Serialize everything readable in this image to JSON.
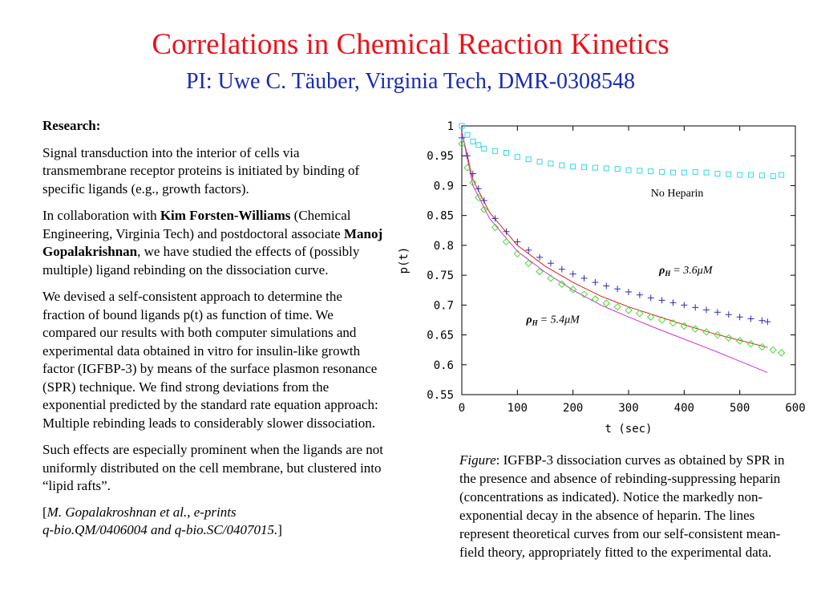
{
  "header": {
    "title": "Correlations in Chemical Reaction Kinetics",
    "subtitle": "PI: Uwe C. Täuber, Virginia Tech, DMR-0308548"
  },
  "left": {
    "heading": "Research:",
    "p1": "Signal transduction into the interior of cells via transmembrane receptor proteins is initiated by binding of specific ligands (e.g., growth factors).",
    "p2a": "In collaboration with ",
    "p2b": "Kim Forsten-Williams",
    "p2c": " (Chemical Engineering, Virginia Tech) and postdoctoral associate ",
    "p2d": "Manoj Gopalakrishnan",
    "p2e": ", we have studied the effects of (possibly multiple) ligand rebinding on the dissociation curve.",
    "p3": "We devised a self-consistent approach to determine the fraction of bound ligands p(t) as function of time. We compared our results with both computer simulations and experimental data obtained in vitro for insulin-like growth factor (IGFBP-3) by means of the surface plasmon resonance (SPR) technique. We find strong deviations from the exponential predicted by the standard rate equation approach: Multiple rebinding leads to considerably slower dissociation.",
    "p4": "Such effects are especially prominent when the ligands are not uniformly distributed on the cell membrane, but clustered into “lipid rafts”.",
    "ref_open": "[",
    "ref_line1": "M. Gopalakroshnan et al., e-prints",
    "ref_line2": "q-bio.QM/0406004 and q-bio.SC/0407015.",
    "ref_close": "]"
  },
  "caption": {
    "label": "Figure",
    "text": ": IGFBP-3 dissociation curves as obtained by SPR in the presence and absence of rebinding-suppressing heparin (concentrations as indicated). Notice the markedly non-exponential decay in the absence of heparin. The lines represent theoretical curves from our self-consistent mean-field theory, appropriately fitted to the experimental data."
  },
  "chart_data": {
    "type": "scatter",
    "xlabel": "t (sec)",
    "ylabel": "p(t)",
    "xlim": [
      0,
      600
    ],
    "ylim": [
      0.55,
      1.0
    ],
    "x_ticks": [
      "0",
      "100",
      "200",
      "300",
      "400",
      "500",
      "600"
    ],
    "y_ticks": [
      "0.55",
      "0.6",
      "0.65",
      "0.7",
      "0.75",
      "0.8",
      "0.85",
      "0.9",
      "0.95",
      "1"
    ],
    "grid": false,
    "annotations": {
      "no_heparin": "No Heparin",
      "rho_symbol": "ρ",
      "rho_sub": "H",
      "rho1_value": "= 3.6μM",
      "rho2_value": "= 5.4μM"
    },
    "series": [
      {
        "name": "No Heparin",
        "marker": "square",
        "color": "#33d6e6",
        "x": [
          0,
          10,
          20,
          30,
          40,
          60,
          80,
          100,
          120,
          140,
          160,
          180,
          200,
          220,
          240,
          260,
          280,
          300,
          320,
          340,
          360,
          380,
          400,
          420,
          440,
          460,
          480,
          500,
          520,
          540,
          560,
          575
        ],
        "y": [
          1.0,
          0.985,
          0.974,
          0.968,
          0.962,
          0.958,
          0.955,
          0.948,
          0.944,
          0.94,
          0.937,
          0.934,
          0.932,
          0.931,
          0.93,
          0.929,
          0.928,
          0.926,
          0.925,
          0.924,
          0.923,
          0.922,
          0.922,
          0.923,
          0.922,
          0.92,
          0.919,
          0.918,
          0.918,
          0.917,
          0.916,
          0.918
        ]
      },
      {
        "name": "3.6 μM heparin",
        "marker": "plus",
        "color": "#2b2bb0",
        "x": [
          0,
          10,
          20,
          30,
          40,
          60,
          80,
          100,
          120,
          140,
          160,
          180,
          200,
          220,
          240,
          260,
          280,
          300,
          320,
          340,
          360,
          380,
          400,
          420,
          440,
          460,
          480,
          500,
          520,
          540,
          550
        ],
        "y": [
          0.98,
          0.95,
          0.92,
          0.895,
          0.875,
          0.845,
          0.823,
          0.806,
          0.792,
          0.78,
          0.77,
          0.76,
          0.752,
          0.745,
          0.738,
          0.732,
          0.727,
          0.722,
          0.717,
          0.712,
          0.708,
          0.704,
          0.7,
          0.696,
          0.692,
          0.688,
          0.684,
          0.68,
          0.677,
          0.674,
          0.672
        ]
      },
      {
        "name": "5.4 μM heparin",
        "marker": "diamond",
        "color": "#44dd33",
        "x": [
          0,
          10,
          20,
          30,
          40,
          60,
          80,
          100,
          120,
          140,
          160,
          180,
          200,
          220,
          240,
          260,
          280,
          300,
          320,
          340,
          360,
          380,
          400,
          420,
          440,
          460,
          480,
          500,
          520,
          540,
          560,
          575
        ],
        "y": [
          0.97,
          0.93,
          0.905,
          0.88,
          0.86,
          0.83,
          0.806,
          0.786,
          0.77,
          0.756,
          0.745,
          0.735,
          0.726,
          0.718,
          0.71,
          0.703,
          0.697,
          0.691,
          0.686,
          0.68,
          0.675,
          0.67,
          0.665,
          0.66,
          0.655,
          0.65,
          0.645,
          0.64,
          0.635,
          0.63,
          0.625,
          0.62
        ]
      }
    ],
    "fits": [
      {
        "color": "#e02020",
        "x": [
          0,
          20,
          50,
          100,
          150,
          200,
          250,
          300,
          350,
          400,
          450,
          500,
          550
        ],
        "y": [
          0.99,
          0.91,
          0.855,
          0.8,
          0.765,
          0.738,
          0.715,
          0.697,
          0.682,
          0.667,
          0.653,
          0.641,
          0.629
        ]
      },
      {
        "color": "#cc33cc",
        "x": [
          0,
          20,
          50,
          100,
          150,
          200,
          250,
          300,
          350,
          400,
          450,
          500,
          550
        ],
        "y": [
          0.99,
          0.9,
          0.845,
          0.79,
          0.755,
          0.725,
          0.7,
          0.68,
          0.661,
          0.643,
          0.625,
          0.606,
          0.587
        ]
      }
    ]
  }
}
